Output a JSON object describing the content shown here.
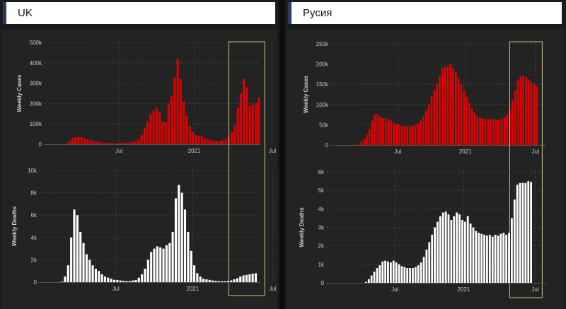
{
  "panels": [
    {
      "title": "UK"
    },
    {
      "title": "Русия"
    }
  ],
  "colors": {
    "cases": "#e00000",
    "deaths": "#ffffff",
    "highlight": "#c8c48a",
    "grid": "#3e3e3e"
  },
  "chart_data": [
    {
      "type": "bar",
      "title": "",
      "ylabel": "Weekly Cases",
      "ylim": [
        0,
        500000
      ],
      "yticks": [
        {
          "value": 0,
          "label": "0"
        },
        {
          "value": 100000,
          "label": "100k"
        },
        {
          "value": 200000,
          "label": "200k"
        },
        {
          "value": 300000,
          "label": "300k"
        },
        {
          "value": 400000,
          "label": "400k"
        },
        {
          "value": 500000,
          "label": "500k"
        }
      ],
      "xticks": [
        {
          "week": 25,
          "label": "Jul"
        },
        {
          "week": 50,
          "label": "2021"
        },
        {
          "week": 76,
          "label": "Jul"
        }
      ],
      "values": [
        0,
        0,
        0,
        0,
        0,
        0,
        1000,
        5000,
        15000,
        30000,
        35000,
        35000,
        35000,
        30000,
        25000,
        20000,
        15000,
        12000,
        10000,
        8000,
        6000,
        6000,
        6000,
        6000,
        6000,
        8000,
        8000,
        8000,
        9000,
        12000,
        15000,
        25000,
        45000,
        80000,
        110000,
        150000,
        165000,
        180000,
        160000,
        110000,
        110000,
        200000,
        240000,
        330000,
        420000,
        320000,
        210000,
        140000,
        90000,
        60000,
        45000,
        42000,
        40000,
        30000,
        25000,
        20000,
        18000,
        16000,
        16000,
        20000,
        25000,
        40000,
        60000,
        90000,
        180000,
        250000,
        320000,
        280000,
        190000,
        195000,
        200000,
        230000
      ],
      "highlight_weeks": [
        62,
        73
      ]
    },
    {
      "type": "bar",
      "title": "",
      "ylabel": "Weekly Deaths",
      "ylim": [
        0,
        10000
      ],
      "yticks": [
        {
          "value": 0,
          "label": "0"
        },
        {
          "value": 2000,
          "label": "2k"
        },
        {
          "value": 4000,
          "label": "4k"
        },
        {
          "value": 6000,
          "label": "6k"
        },
        {
          "value": 8000,
          "label": "8k"
        },
        {
          "value": 10000,
          "label": "10k"
        }
      ],
      "xticks": [
        {
          "week": 25,
          "label": "Jul"
        },
        {
          "week": 50,
          "label": "2021"
        },
        {
          "week": 76,
          "label": "Jul"
        }
      ],
      "values": [
        0,
        0,
        0,
        0,
        0,
        0,
        0,
        50,
        500,
        1500,
        4000,
        6500,
        6000,
        4500,
        3500,
        2500,
        2000,
        1500,
        1200,
        1000,
        700,
        500,
        400,
        300,
        200,
        200,
        150,
        120,
        100,
        100,
        150,
        200,
        400,
        700,
        1200,
        2000,
        2700,
        3000,
        3200,
        3100,
        3000,
        3300,
        3500,
        4500,
        7500,
        8700,
        8000,
        6500,
        4500,
        2800,
        1500,
        800,
        500,
        300,
        250,
        200,
        150,
        120,
        100,
        80,
        80,
        100,
        150,
        250,
        350,
        500,
        600,
        650,
        700,
        750,
        800
      ],
      "highlight_weeks": [
        62,
        73
      ]
    },
    {
      "type": "bar",
      "title": "",
      "ylabel": "Weekly Cases",
      "ylim": [
        0,
        250000
      ],
      "yticks": [
        {
          "value": 0,
          "label": "0"
        },
        {
          "value": 50000,
          "label": "50k"
        },
        {
          "value": 100000,
          "label": "100k"
        },
        {
          "value": 150000,
          "label": "150k"
        },
        {
          "value": 200000,
          "label": "200k"
        },
        {
          "value": 250000,
          "label": "250k"
        }
      ],
      "xticks": [
        {
          "week": 25,
          "label": "Jul"
        },
        {
          "week": 50,
          "label": "2021"
        },
        {
          "week": 76,
          "label": "Jul"
        }
      ],
      "values": [
        0,
        0,
        0,
        0,
        0,
        0,
        0,
        0,
        500,
        1000,
        3000,
        8000,
        15000,
        25000,
        40000,
        60000,
        76000,
        76000,
        70000,
        66000,
        65000,
        64000,
        60000,
        55000,
        52000,
        50000,
        48000,
        47000,
        46000,
        46000,
        47000,
        49000,
        53000,
        60000,
        70000,
        85000,
        100000,
        120000,
        135000,
        150000,
        170000,
        190000,
        193000,
        195000,
        200000,
        190000,
        180000,
        165000,
        150000,
        135000,
        120000,
        105000,
        90000,
        80000,
        72000,
        67000,
        65000,
        64000,
        64000,
        64000,
        63000,
        62000,
        62000,
        64000,
        68000,
        75000,
        88000,
        110000,
        135000,
        160000,
        170000,
        172000,
        168000,
        162000,
        155000,
        150000,
        145000
      ],
      "highlight_weeks": [
        67,
        78
      ]
    },
    {
      "type": "bar",
      "title": "",
      "ylabel": "Weekly Deaths",
      "ylim": [
        0,
        6000
      ],
      "yticks": [
        {
          "value": 0,
          "label": "0"
        },
        {
          "value": 1000,
          "label": "1k"
        },
        {
          "value": 2000,
          "label": "2k"
        },
        {
          "value": 3000,
          "label": "3k"
        },
        {
          "value": 4000,
          "label": "4k"
        },
        {
          "value": 5000,
          "label": "5k"
        },
        {
          "value": 6000,
          "label": "6k"
        }
      ],
      "xticks": [
        {
          "week": 25,
          "label": "Jul"
        },
        {
          "week": 50,
          "label": "2021"
        },
        {
          "week": 76,
          "label": "Jul"
        }
      ],
      "values": [
        0,
        0,
        0,
        0,
        0,
        0,
        0,
        0,
        0,
        0,
        0,
        0,
        0,
        0,
        50,
        200,
        400,
        600,
        800,
        950,
        1150,
        1200,
        1150,
        1100,
        1200,
        1100,
        1000,
        900,
        850,
        800,
        800,
        800,
        850,
        950,
        1100,
        1400,
        1800,
        2200,
        2600,
        3000,
        3300,
        3600,
        3800,
        3850,
        3700,
        3400,
        3600,
        3800,
        3700,
        3400,
        3300,
        3600,
        3200,
        3000,
        2800,
        2700,
        2650,
        2600,
        2550,
        2600,
        2500,
        2600,
        2550,
        2650,
        2700,
        2600,
        2700,
        3500,
        4500,
        5300,
        5400,
        5400,
        5400,
        5500,
        5450
      ],
      "highlight_weeks": [
        67,
        78
      ]
    }
  ]
}
